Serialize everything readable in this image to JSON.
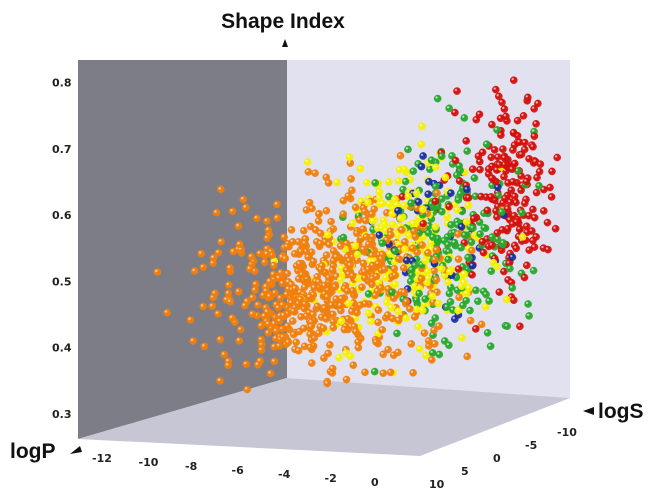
{
  "chart_data": {
    "type": "scatter",
    "dimensions": 3,
    "axes": {
      "z": {
        "label": "Shape Index",
        "range": [
          0.3,
          0.8
        ],
        "ticks": [
          "0.3",
          "0.4",
          "0.5",
          "0.6",
          "0.7",
          "0.8"
        ]
      },
      "x": {
        "label": "logP",
        "range": [
          -13,
          0
        ],
        "ticks": [
          "-12",
          "-10",
          "-8",
          "-6",
          "-4",
          "-2",
          "0"
        ]
      },
      "y": {
        "label": "logS",
        "range": [
          -12,
          10
        ],
        "ticks": [
          "-10",
          "-5",
          "0",
          "5",
          "10"
        ]
      }
    },
    "grid": false,
    "legend": "none",
    "colors": {
      "orange": "#f07f0c",
      "yellow": "#f5f000",
      "green": "#27a82c",
      "red": "#d4100b",
      "blue": "#1c2e9c",
      "left_wall": "#7d7d87",
      "back_wall": "#e1e1ef",
      "floor": "#c6c6d4"
    },
    "series": [
      {
        "color": "orange",
        "count": 620,
        "logP_mean": -5.6,
        "logP_sd": 2.1,
        "logS_mean": 0.5,
        "logS_sd": 4.0,
        "shape_mean": 0.49,
        "shape_sd": 0.075
      },
      {
        "color": "yellow",
        "count": 230,
        "logP_mean": -3.2,
        "logP_sd": 1.5,
        "logS_mean": -1.0,
        "logS_sd": 4.0,
        "shape_mean": 0.53,
        "shape_sd": 0.08
      },
      {
        "color": "green",
        "count": 210,
        "logP_mean": -1.7,
        "logP_sd": 1.3,
        "logS_mean": -3.0,
        "logS_sd": 3.8,
        "shape_mean": 0.54,
        "shape_sd": 0.085
      },
      {
        "color": "red",
        "count": 200,
        "logP_mean": -0.3,
        "logP_sd": 1.2,
        "logS_mean": -6.5,
        "logS_sd": 3.0,
        "shape_mean": 0.6,
        "shape_sd": 0.09
      },
      {
        "color": "blue",
        "count": 45,
        "logP_mean": -2.2,
        "logP_sd": 1.4,
        "logS_mean": -3.5,
        "logS_sd": 3.5,
        "shape_mean": 0.55,
        "shape_sd": 0.08
      }
    ]
  }
}
